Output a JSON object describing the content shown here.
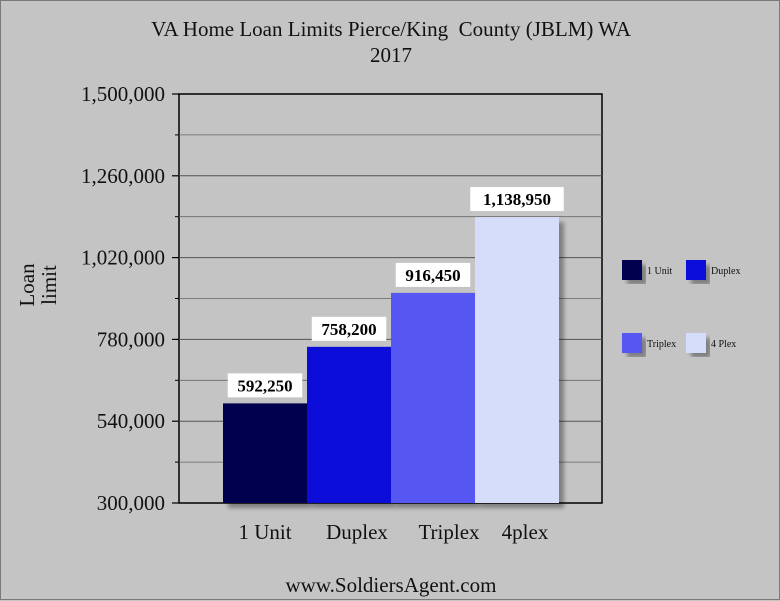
{
  "chart_data": {
    "type": "bar",
    "title": "VA Home Loan Limits Pierce/King  County (JBLM) WA",
    "subtitle": "2017",
    "ylabel_lines": [
      "Loan",
      "limit"
    ],
    "xlabel": "",
    "categories": [
      "1 Unit",
      "Duplex",
      "Triplex",
      "4plex"
    ],
    "values": [
      592250,
      758200,
      916450,
      1138950
    ],
    "data_labels": [
      "592,250",
      "758,200",
      "916,450",
      "1,138,950"
    ],
    "ylim": [
      300000,
      1500000
    ],
    "yticks": [
      300000,
      540000,
      780000,
      1020000,
      1260000,
      1500000
    ],
    "ytick_labels": [
      "300,000",
      "540,000",
      "780,000",
      "1,020,000",
      "1,260,000",
      "1,500,000"
    ],
    "grid": true,
    "legend": {
      "placement": "right",
      "entries": [
        "1 Unit",
        "Duplex",
        "Triplex",
        "4 Plex"
      ]
    },
    "colors": [
      "#05054f",
      "#0b0bd9",
      "#5656f2",
      "#d6ddfb"
    ]
  },
  "footer": "www.SoldiersAgent.com"
}
